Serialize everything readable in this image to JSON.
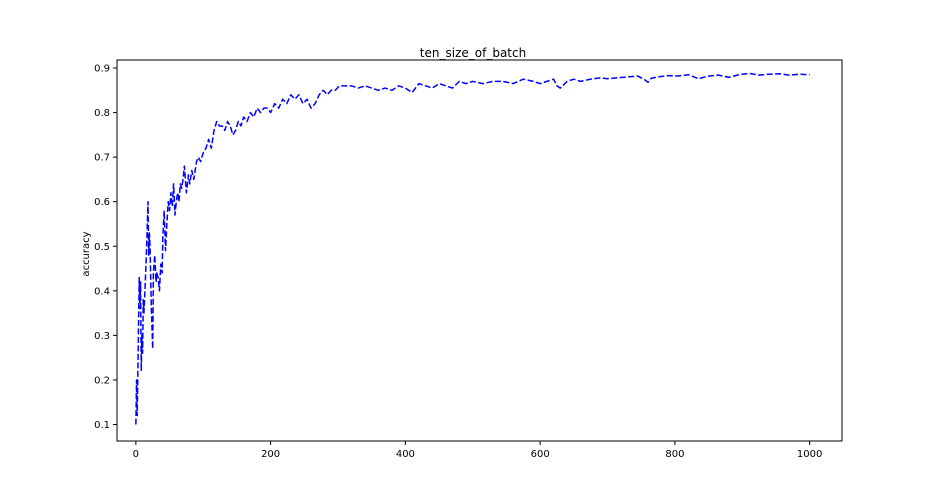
{
  "chart_data": {
    "type": "line",
    "title": "ten_size_of_batch",
    "xlabel": "",
    "ylabel": "accuracy",
    "xlim": [
      -28,
      1048
    ],
    "ylim": [
      0.063,
      0.918
    ],
    "xticks": [
      0,
      200,
      400,
      600,
      800,
      1000
    ],
    "yticks": [
      0.1,
      0.2,
      0.3,
      0.4,
      0.5,
      0.6,
      0.7,
      0.8,
      0.9
    ],
    "xtick_labels": [
      "0",
      "200",
      "400",
      "600",
      "800",
      "1000"
    ],
    "ytick_labels": [
      "0.1",
      "0.2",
      "0.3",
      "0.4",
      "0.5",
      "0.6",
      "0.7",
      "0.8",
      "0.9"
    ],
    "grid": false,
    "legend": "none",
    "line_style": "dashed",
    "color": "#0000ff",
    "series": [
      {
        "x": [
          0,
          1,
          2,
          3,
          4,
          5,
          6,
          7,
          8,
          9,
          10,
          11,
          12,
          14,
          16,
          18,
          19,
          20,
          21,
          23,
          25,
          26,
          28,
          30,
          31,
          33,
          35,
          37,
          39,
          40,
          42,
          44,
          46,
          48,
          50,
          52,
          54,
          56,
          58,
          60,
          62,
          64,
          66,
          68,
          70,
          72,
          75,
          78,
          80,
          83,
          86,
          90,
          93,
          96,
          100,
          104,
          108,
          112,
          116,
          120,
          124,
          128,
          132,
          136,
          140,
          144,
          148,
          152,
          156,
          160,
          165,
          170,
          175,
          180,
          185,
          190,
          195,
          200,
          206,
          212,
          218,
          224,
          230,
          236,
          242,
          248,
          254,
          260,
          266,
          272,
          278,
          284,
          290,
          296,
          302,
          310,
          320,
          330,
          340,
          350,
          360,
          370,
          380,
          390,
          400,
          410,
          420,
          430,
          440,
          450,
          460,
          470,
          480,
          490,
          500,
          515,
          530,
          545,
          560,
          575,
          590,
          600,
          610,
          620,
          625,
          630,
          640,
          650,
          660,
          675,
          690,
          700,
          715,
          730,
          745,
          755,
          760,
          765,
          775,
          790,
          805,
          820,
          835,
          850,
          865,
          880,
          895,
          910,
          925,
          940,
          955,
          970,
          985,
          1000
        ],
        "values": [
          0.1,
          0.2,
          0.12,
          0.22,
          0.33,
          0.43,
          0.36,
          0.42,
          0.22,
          0.3,
          0.26,
          0.38,
          0.35,
          0.42,
          0.5,
          0.6,
          0.48,
          0.53,
          0.5,
          0.36,
          0.27,
          0.44,
          0.48,
          0.42,
          0.44,
          0.43,
          0.4,
          0.46,
          0.44,
          0.52,
          0.58,
          0.49,
          0.55,
          0.6,
          0.58,
          0.62,
          0.59,
          0.64,
          0.57,
          0.6,
          0.62,
          0.6,
          0.64,
          0.63,
          0.65,
          0.68,
          0.62,
          0.66,
          0.64,
          0.67,
          0.65,
          0.69,
          0.7,
          0.69,
          0.71,
          0.72,
          0.74,
          0.72,
          0.76,
          0.78,
          0.77,
          0.77,
          0.76,
          0.78,
          0.77,
          0.75,
          0.76,
          0.78,
          0.77,
          0.79,
          0.78,
          0.8,
          0.79,
          0.81,
          0.8,
          0.81,
          0.81,
          0.8,
          0.82,
          0.81,
          0.83,
          0.82,
          0.84,
          0.83,
          0.84,
          0.82,
          0.83,
          0.81,
          0.82,
          0.84,
          0.85,
          0.84,
          0.85,
          0.85,
          0.86,
          0.86,
          0.86,
          0.855,
          0.86,
          0.855,
          0.85,
          0.855,
          0.85,
          0.86,
          0.855,
          0.845,
          0.865,
          0.86,
          0.855,
          0.865,
          0.86,
          0.855,
          0.87,
          0.865,
          0.87,
          0.865,
          0.87,
          0.87,
          0.865,
          0.875,
          0.87,
          0.865,
          0.87,
          0.875,
          0.86,
          0.855,
          0.87,
          0.875,
          0.87,
          0.875,
          0.878,
          0.876,
          0.878,
          0.88,
          0.882,
          0.874,
          0.868,
          0.877,
          0.88,
          0.883,
          0.882,
          0.885,
          0.876,
          0.882,
          0.884,
          0.879,
          0.885,
          0.888,
          0.884,
          0.886,
          0.887,
          0.884,
          0.886,
          0.885
        ]
      }
    ]
  }
}
